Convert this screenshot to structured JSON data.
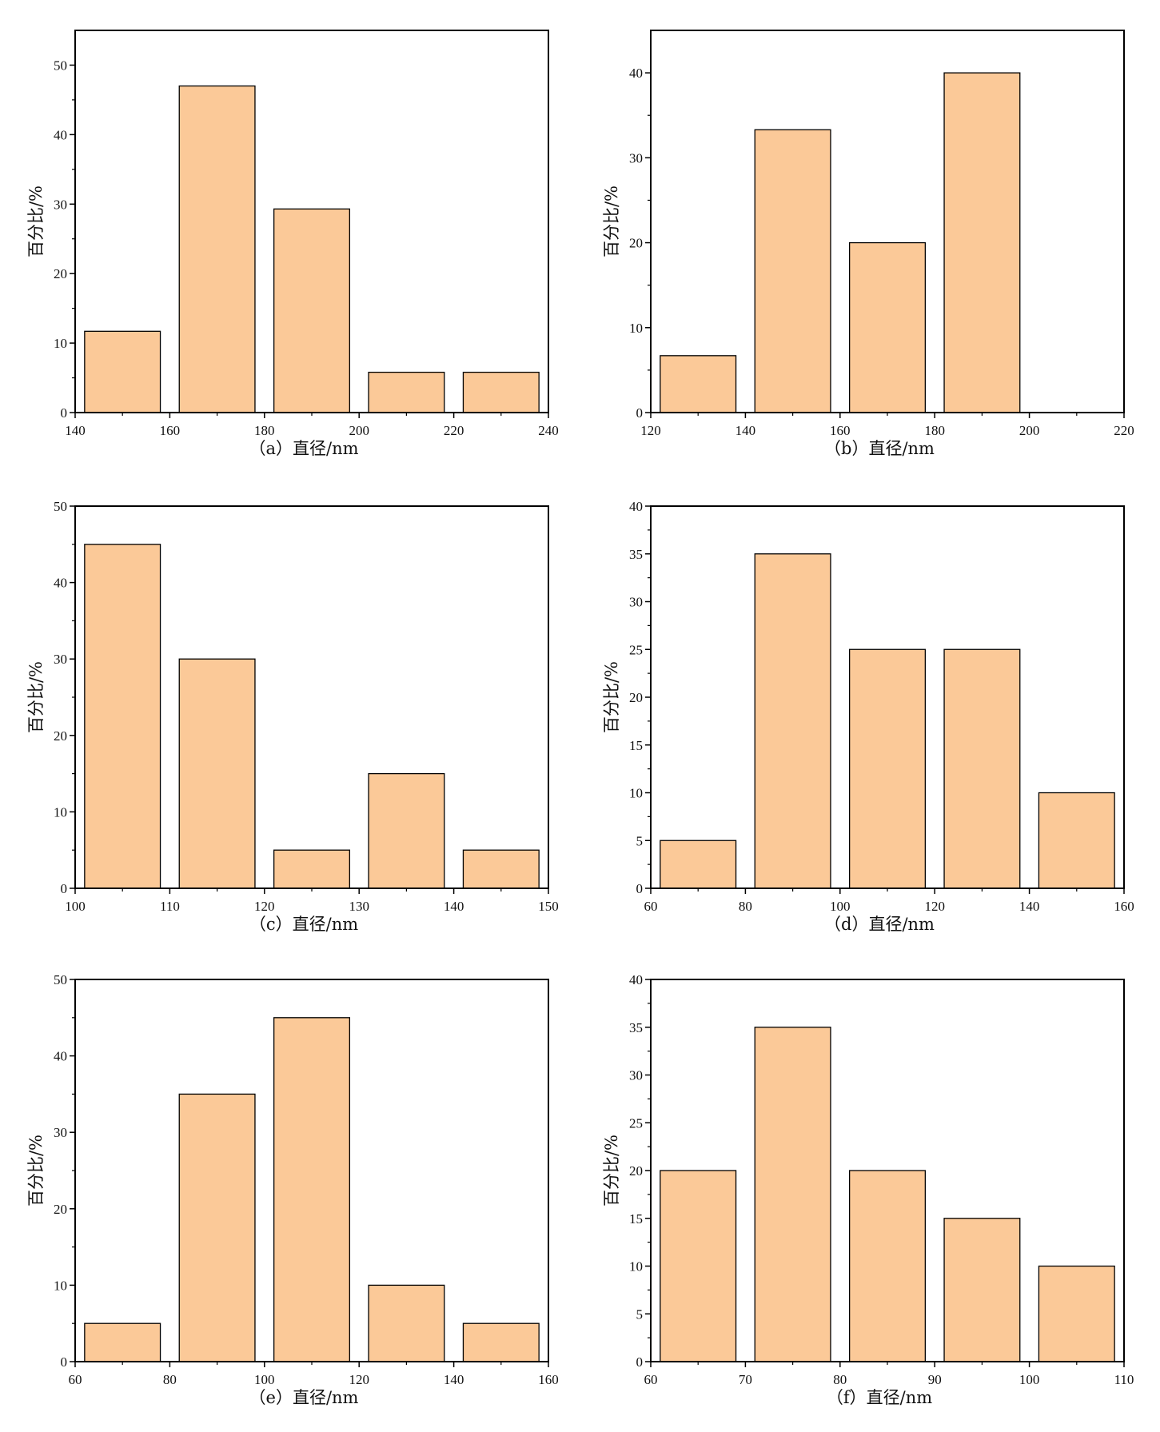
{
  "chart_data": [
    {
      "type": "bar",
      "panel": "a",
      "xlabel": "（a）直径/nm",
      "ylabel": "百分比/%",
      "xlim": [
        140,
        240
      ],
      "ylim": [
        0,
        55
      ],
      "xticks": [
        140,
        160,
        180,
        200,
        220,
        240
      ],
      "yticks": [
        0,
        10,
        20,
        30,
        40,
        50
      ],
      "bin_width": 20,
      "x": [
        150,
        170,
        190,
        210,
        230
      ],
      "values": [
        11.7,
        47,
        29.3,
        5.8,
        5.8
      ],
      "color": "#FBC998"
    },
    {
      "type": "bar",
      "panel": "b",
      "xlabel": "（b）直径/nm",
      "ylabel": "百分比/%",
      "xlim": [
        120,
        220
      ],
      "ylim": [
        0,
        45
      ],
      "xticks": [
        120,
        140,
        160,
        180,
        200,
        220
      ],
      "yticks": [
        0,
        10,
        20,
        30,
        40
      ],
      "bin_width": 20,
      "x": [
        130,
        150,
        170,
        190
      ],
      "values": [
        6.7,
        33.3,
        20,
        40
      ],
      "color": "#FBC998"
    },
    {
      "type": "bar",
      "panel": "c",
      "xlabel": "（c）直径/nm",
      "ylabel": "百分比/%",
      "xlim": [
        100,
        150
      ],
      "ylim": [
        0,
        50
      ],
      "xticks": [
        100,
        110,
        120,
        130,
        140,
        150
      ],
      "yticks": [
        0,
        10,
        20,
        30,
        40,
        50
      ],
      "bin_width": 10,
      "x": [
        105,
        115,
        125,
        135,
        145
      ],
      "values": [
        45,
        30,
        5,
        15,
        5
      ],
      "color": "#FBC998"
    },
    {
      "type": "bar",
      "panel": "d",
      "xlabel": "（d）直径/nm",
      "ylabel": "百分比/%",
      "xlim": [
        60,
        160
      ],
      "ylim": [
        0,
        40
      ],
      "xticks": [
        60,
        80,
        100,
        120,
        140,
        160
      ],
      "yticks": [
        0,
        5,
        10,
        15,
        20,
        25,
        30,
        35,
        40
      ],
      "bin_width": 20,
      "x": [
        70,
        90,
        110,
        130,
        150
      ],
      "values": [
        5,
        35,
        25,
        25,
        10
      ],
      "color": "#FBC998"
    },
    {
      "type": "bar",
      "panel": "e",
      "xlabel": "（e）直径/nm",
      "ylabel": "百分比/%",
      "xlim": [
        60,
        160
      ],
      "ylim": [
        0,
        50
      ],
      "xticks": [
        60,
        80,
        100,
        120,
        140,
        160
      ],
      "yticks": [
        0,
        10,
        20,
        30,
        40,
        50
      ],
      "bin_width": 20,
      "x": [
        70,
        90,
        110,
        130,
        150
      ],
      "values": [
        5,
        35,
        45,
        10,
        5
      ],
      "color": "#FBC998"
    },
    {
      "type": "bar",
      "panel": "f",
      "xlabel": "（f）直径/nm",
      "ylabel": "百分比/%",
      "xlim": [
        60,
        110
      ],
      "ylim": [
        0,
        40
      ],
      "xticks": [
        60,
        70,
        80,
        90,
        100,
        110
      ],
      "yticks": [
        0,
        5,
        10,
        15,
        20,
        25,
        30,
        35,
        40
      ],
      "bin_width": 10,
      "x": [
        65,
        75,
        85,
        95,
        105
      ],
      "values": [
        20,
        35,
        20,
        15,
        10
      ],
      "color": "#FBC998"
    }
  ]
}
